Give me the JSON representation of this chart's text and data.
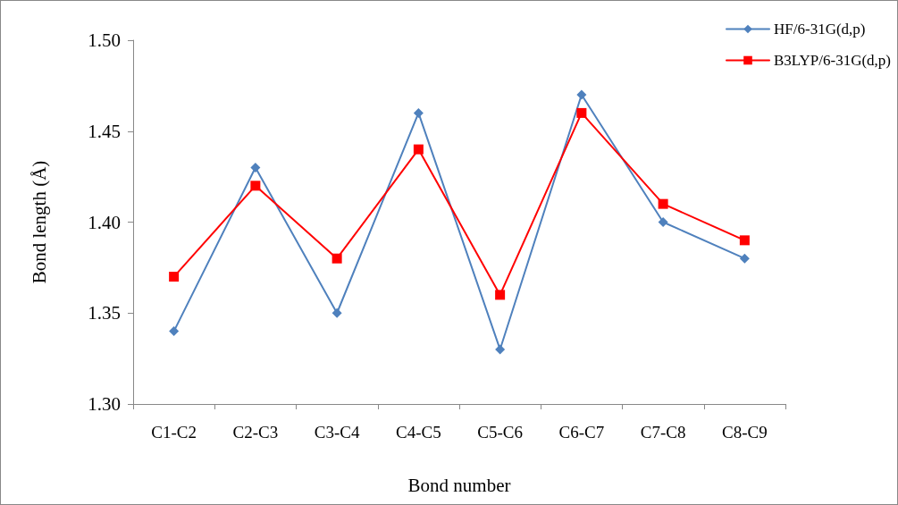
{
  "chart_data": {
    "type": "line",
    "xlabel": "Bond number",
    "ylabel": "Bond length (Å)",
    "categories": [
      "C1-C2",
      "C2-C3",
      "C3-C4",
      "C4-C5",
      "C5-C6",
      "C6-C7",
      "C7-C8",
      "C8-C9"
    ],
    "series": [
      {
        "name": "HF/6-31G(d,p)",
        "color": "#4f81bd",
        "marker": "diamond",
        "values": [
          1.34,
          1.43,
          1.35,
          1.46,
          1.33,
          1.47,
          1.4,
          1.38
        ]
      },
      {
        "name": "B3LYP/6-31G(d,p)",
        "color": "#ff0000",
        "marker": "square",
        "values": [
          1.37,
          1.42,
          1.38,
          1.44,
          1.36,
          1.46,
          1.41,
          1.39
        ]
      }
    ],
    "ylim": [
      1.3,
      1.5
    ],
    "yticks": [
      {
        "value": 1.3,
        "label": "1.30"
      },
      1.35,
      {
        "value": 1.4,
        "label": "1.40"
      },
      1.45,
      {
        "value": 1.5,
        "label": "1.50"
      }
    ],
    "grid": false,
    "legend": "top right"
  }
}
